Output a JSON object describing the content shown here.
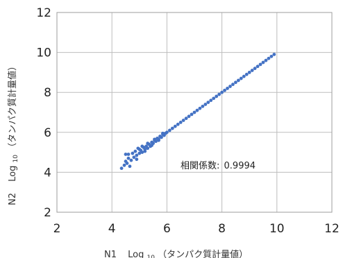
{
  "chart_data": {
    "type": "scatter",
    "xlabel_prefix": "N1",
    "xlabel_log": "Log",
    "xlabel_sub": "10",
    "xlabel_suffix": "（タンパク質計量値）",
    "ylabel_prefix": "N2",
    "ylabel_log": "Log",
    "ylabel_sub": "10",
    "ylabel_suffix": "（タンパク質計量値）",
    "xlim": [
      2,
      12
    ],
    "ylim": [
      2,
      12
    ],
    "xticks": [
      "2",
      "4",
      "6",
      "8",
      "10",
      "12"
    ],
    "yticks": [
      "2",
      "4",
      "6",
      "8",
      "10",
      "12"
    ],
    "grid": true,
    "annotation_label": "相関係数:",
    "annotation_value": "0.9994",
    "marker_color": "#4472C4",
    "series": [
      {
        "x": [
          4.35,
          4.45,
          4.5,
          4.55,
          4.6,
          4.65,
          4.7,
          4.8,
          4.85,
          4.9,
          4.95,
          5.0,
          5.05,
          5.1,
          5.15,
          5.2,
          5.25,
          5.3,
          5.35,
          5.4,
          5.45,
          5.5,
          5.55,
          5.6,
          5.65,
          5.7,
          5.75,
          5.8,
          5.85,
          5.9,
          5.95,
          6.0,
          6.1,
          6.2,
          6.3,
          6.4,
          6.5,
          6.6,
          6.7,
          6.8,
          6.9,
          7.0,
          7.1,
          7.2,
          7.3,
          7.4,
          7.5,
          7.6,
          7.7,
          7.8,
          7.9,
          8.0,
          8.1,
          8.2,
          8.3,
          8.4,
          8.5,
          8.6,
          8.7,
          8.8,
          8.9,
          9.0,
          9.1,
          9.2,
          9.3,
          9.4,
          9.5,
          9.6,
          9.7,
          9.8,
          9.9,
          4.5,
          4.6,
          4.75,
          4.9,
          5.0,
          5.1,
          5.2,
          5.3,
          5.45,
          5.55,
          5.7,
          5.85
        ],
        "y": [
          4.2,
          4.35,
          4.9,
          4.45,
          4.7,
          4.3,
          4.6,
          4.75,
          5.05,
          4.85,
          5.2,
          4.95,
          5.1,
          5.0,
          5.25,
          5.15,
          5.3,
          5.2,
          5.4,
          5.3,
          5.5,
          5.45,
          5.6,
          5.55,
          5.7,
          5.65,
          5.8,
          5.75,
          5.9,
          5.85,
          5.95,
          6.0,
          6.1,
          6.2,
          6.3,
          6.4,
          6.5,
          6.6,
          6.7,
          6.8,
          6.9,
          7.0,
          7.1,
          7.2,
          7.3,
          7.4,
          7.5,
          7.6,
          7.7,
          7.8,
          7.9,
          8.0,
          8.1,
          8.2,
          8.3,
          8.4,
          8.5,
          8.6,
          8.7,
          8.8,
          8.9,
          9.0,
          9.1,
          9.2,
          9.3,
          9.4,
          9.5,
          9.6,
          9.7,
          9.8,
          9.9,
          4.55,
          4.9,
          4.95,
          4.65,
          5.15,
          5.3,
          5.05,
          5.45,
          5.35,
          5.65,
          5.6,
          5.95
        ]
      }
    ]
  }
}
